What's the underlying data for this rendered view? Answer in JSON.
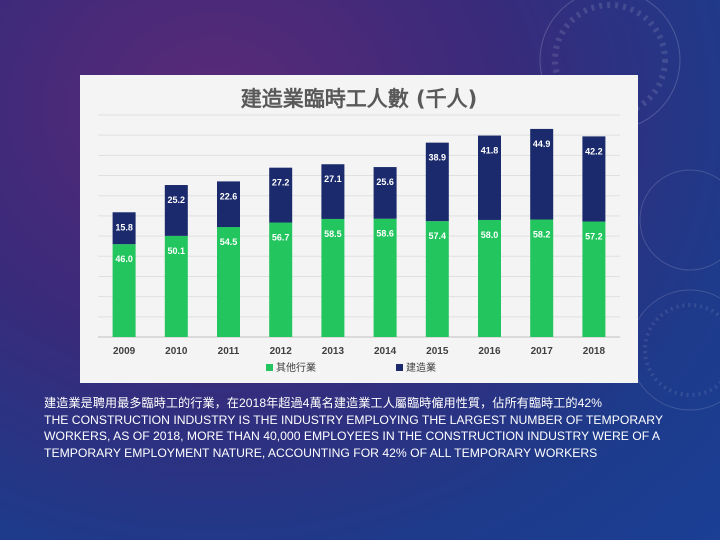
{
  "chart_data": {
    "type": "bar",
    "stacked": true,
    "title": "建造業臨時工人數 (千人)",
    "categories": [
      "2009",
      "2010",
      "2011",
      "2012",
      "2013",
      "2014",
      "2015",
      "2016",
      "2017",
      "2018"
    ],
    "series": [
      {
        "name": "其他行業",
        "color": "#22c55e",
        "values": [
          46.0,
          50.1,
          54.5,
          56.7,
          58.5,
          58.6,
          57.4,
          58.0,
          58.2,
          57.2
        ]
      },
      {
        "name": "建造業",
        "color": "#1a2a6c",
        "values": [
          15.8,
          25.2,
          22.6,
          27.2,
          27.1,
          25.6,
          38.9,
          41.8,
          44.9,
          42.2
        ]
      }
    ],
    "value_labels": {
      "其他行業": [
        "46.0",
        "50.1",
        "54.5",
        "56.7",
        "58.5",
        "58.6",
        "57.4",
        "58.0",
        "58.2",
        "57.2"
      ],
      "建造業": [
        "15.8",
        "25.2",
        "22.6",
        "27.2",
        "27.1",
        "25.6",
        "38.9",
        "41.8",
        "44.9",
        "42.2"
      ]
    },
    "ylim": [
      0,
      110
    ],
    "grid": true,
    "legend_position": "bottom"
  },
  "caption": {
    "zh": "建造業是聘用最多臨時工的行業，在2018年超過4萬名建造業工人屬臨時僱用性質，佔所有臨時工的42%",
    "en": "THE CONSTRUCTION INDUSTRY IS THE INDUSTRY EMPLOYING THE LARGEST NUMBER OF TEMPORARY WORKERS, AS OF 2018, MORE THAN 40,000 EMPLOYEES IN THE CONSTRUCTION INDUSTRY WERE OF A TEMPORARY EMPLOYMENT NATURE, ACCOUNTING FOR 42% OF ALL TEMPORARY WORKERS"
  }
}
